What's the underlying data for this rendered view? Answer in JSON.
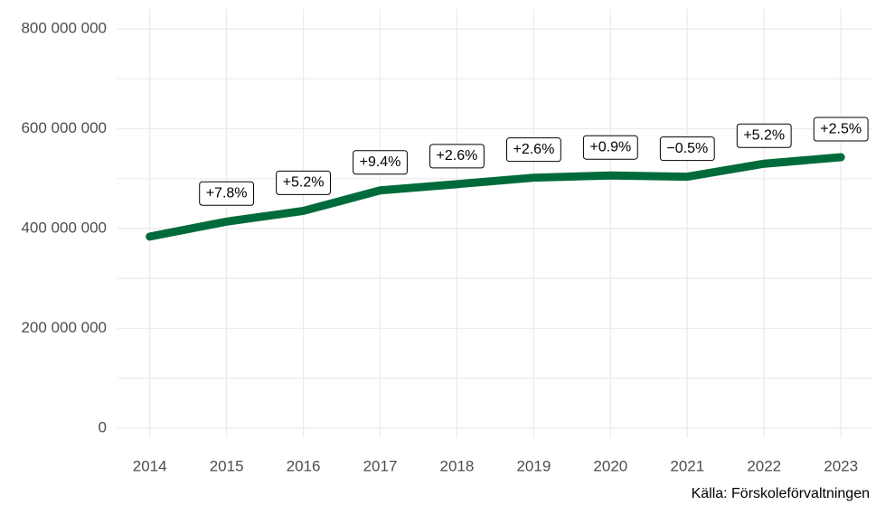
{
  "chart_data": {
    "type": "line",
    "x": [
      2014,
      2015,
      2016,
      2017,
      2018,
      2019,
      2020,
      2021,
      2022,
      2023
    ],
    "series": [
      {
        "color": "#006b3a",
        "values": [
          384000000,
          414000000,
          435500000,
          476500000,
          489000000,
          502000000,
          506500000,
          504000000,
          530000000,
          543000000
        ],
        "annotations": [
          null,
          "+7.8%",
          "+5.2%",
          "+9.4%",
          "+2.6%",
          "+2.6%",
          "+0.9%",
          "−0.5%",
          "+5.2%",
          "+2.5%"
        ]
      }
    ],
    "xlim": [
      2013.58,
      2023.41
    ],
    "xticks": [
      2014,
      2015,
      2016,
      2017,
      2018,
      2019,
      2020,
      2021,
      2022,
      2023
    ],
    "ylim": [
      -20000000,
      840000000
    ],
    "yticks": [
      0,
      {
        "value": 200000000,
        "label": "200 000 000"
      },
      {
        "value": 400000000,
        "label": "400 000 000"
      },
      {
        "value": 600000000,
        "label": "600 000 000"
      },
      {
        "value": 800000000,
        "label": "800 000 000"
      }
    ],
    "grid": true,
    "source": "Källa: Förskoleförvaltningen"
  }
}
